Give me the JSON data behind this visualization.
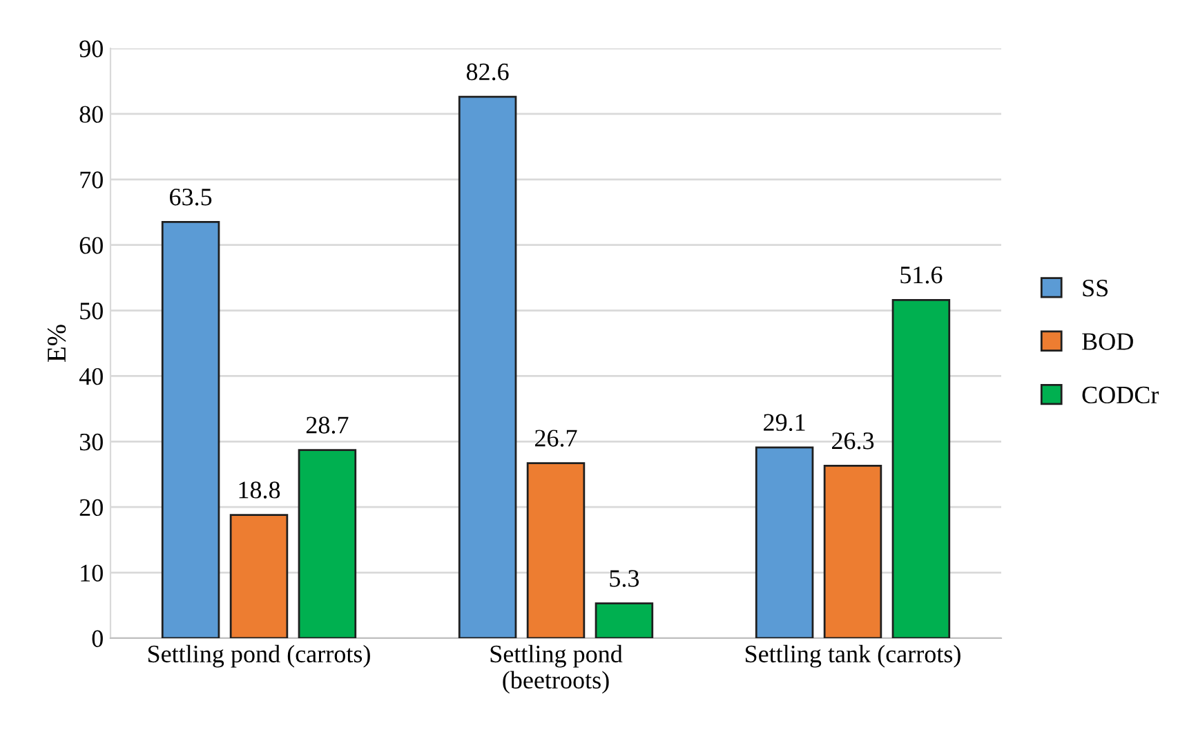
{
  "chart_data": {
    "type": "bar",
    "ylabel": "E%",
    "categories": [
      "Settling pond (carrots)",
      "Settling pond\n(beetroots)",
      "Settling tank (carrots)"
    ],
    "series": [
      {
        "name": "SS",
        "color": "#5b9bd5",
        "values": [
          63.5,
          82.6,
          29.1
        ]
      },
      {
        "name": "BOD",
        "color": "#ed7d31",
        "values": [
          18.8,
          26.7,
          26.3
        ]
      },
      {
        "name": "CODCr",
        "color": "#00b050",
        "values": [
          28.7,
          5.3,
          51.6
        ]
      }
    ],
    "ylim": [
      0,
      90
    ],
    "yticks": [
      0,
      10,
      20,
      30,
      40,
      50,
      60,
      70,
      80,
      90
    ],
    "grid": "y",
    "legend": "right",
    "data_labels": true
  }
}
